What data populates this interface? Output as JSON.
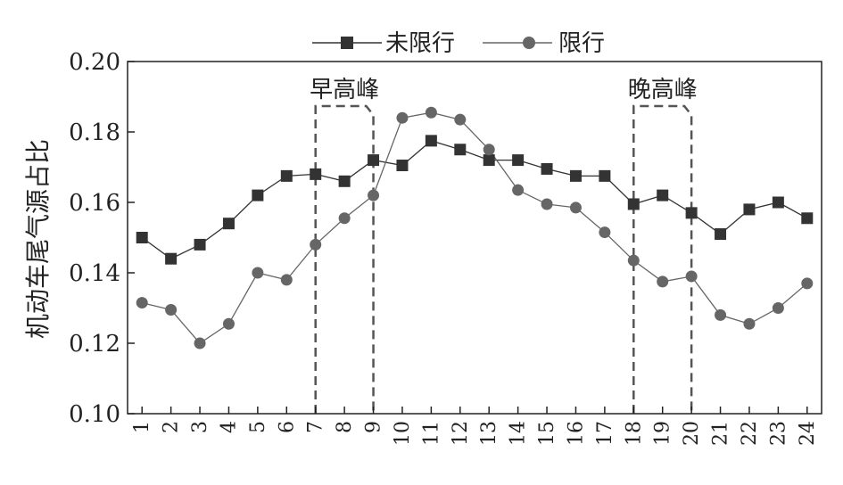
{
  "chart_data": {
    "type": "line",
    "x": [
      "1",
      "2",
      "3",
      "4",
      "5",
      "6",
      "7",
      "8",
      "9",
      "10",
      "11",
      "12",
      "13",
      "14",
      "15",
      "16",
      "17",
      "18",
      "19",
      "20",
      "21",
      "22",
      "23",
      "24"
    ],
    "series": [
      {
        "name": "未限行",
        "marker": "square",
        "color": "#333333",
        "values": [
          0.15,
          0.144,
          0.148,
          0.154,
          0.162,
          0.1675,
          0.168,
          0.166,
          0.172,
          0.1705,
          0.1775,
          0.175,
          0.172,
          0.172,
          0.1695,
          0.1675,
          0.1675,
          0.1595,
          0.162,
          0.157,
          0.151,
          0.158,
          0.16,
          0.1555
        ]
      },
      {
        "name": "限行",
        "marker": "circle",
        "color": "#666666",
        "values": [
          0.1315,
          0.1295,
          0.12,
          0.1255,
          0.14,
          0.138,
          0.148,
          0.1555,
          0.162,
          0.184,
          0.1855,
          0.1835,
          0.175,
          0.1635,
          0.1595,
          0.1585,
          0.1515,
          0.1435,
          0.1375,
          0.139,
          0.128,
          0.1255,
          0.13,
          0.137
        ]
      }
    ],
    "ylabel": "机动车尾气源占比",
    "ylim": [
      0.1,
      0.2
    ],
    "yticks": [
      "0.10",
      "0.12",
      "0.14",
      "0.16",
      "0.18",
      "0.20"
    ],
    "grid": false,
    "legend_position": "top",
    "annotations": [
      {
        "label": "早高峰",
        "x_start": 7,
        "x_end": 9
      },
      {
        "label": "晚高峰",
        "x_start": 18,
        "x_end": 20
      }
    ]
  }
}
